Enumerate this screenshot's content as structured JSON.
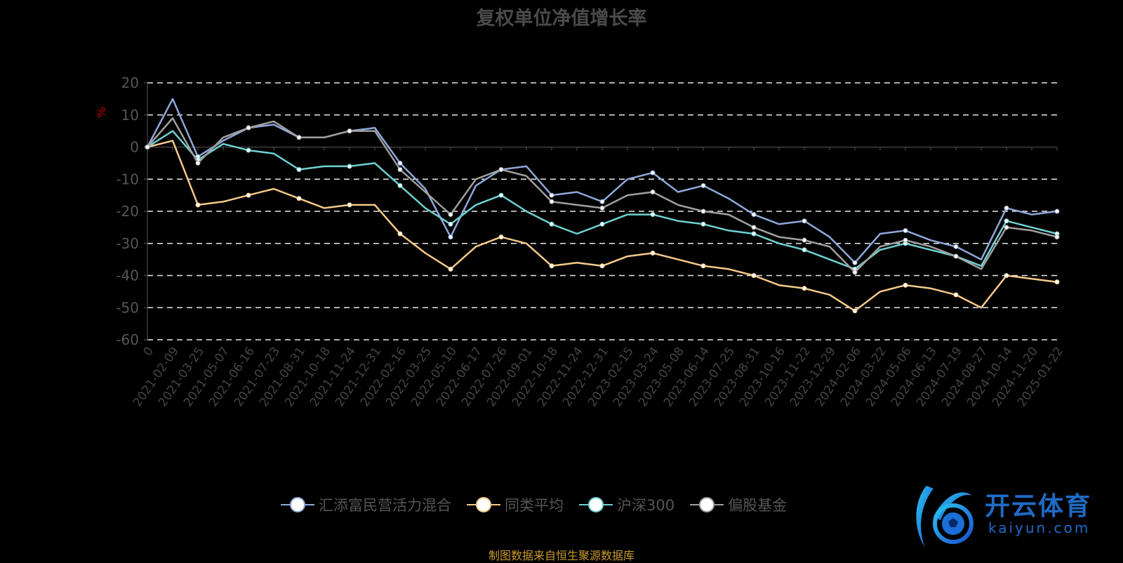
{
  "chart_data": {
    "type": "line",
    "title": "复权单位净值增长率",
    "ylabel": "%",
    "xlabel": "",
    "ylim": [
      -60,
      20
    ],
    "yticks": [
      20,
      10,
      0,
      -10,
      -20,
      -30,
      -40,
      -50,
      -60
    ],
    "grid": true,
    "legend_position": "bottom",
    "categories": [
      "0",
      "2021-02-09",
      "2021-03-25",
      "2021-05-07",
      "2021-06-16",
      "2021-07-23",
      "2021-08-31",
      "2021-10-18",
      "2021-11-24",
      "2021-12-31",
      "2022-02-16",
      "2022-03-25",
      "2022-05-10",
      "2022-06-17",
      "2022-07-26",
      "2022-09-01",
      "2022-10-18",
      "2022-11-24",
      "2022-12-31",
      "2023-02-15",
      "2023-03-24",
      "2023-05-08",
      "2023-06-14",
      "2023-07-25",
      "2023-08-31",
      "2023-10-16",
      "2023-11-22",
      "2023-12-29",
      "2024-02-06",
      "2024-03-22",
      "2024-05-06",
      "2024-06-13",
      "2024-07-19",
      "2024-08-27",
      "2024-10-14",
      "2024-11-20",
      "2025-01-22"
    ],
    "series": [
      {
        "name": "汇添富民营活力混合",
        "color": "#8fa8d8",
        "values": [
          0,
          15,
          -3,
          2,
          6,
          7,
          3,
          3,
          5,
          6,
          -5,
          -13,
          -28,
          -12,
          -7,
          -6,
          -15,
          -14,
          -17,
          -10,
          -8,
          -14,
          -12,
          -16,
          -21,
          -24,
          -23,
          -28,
          -36,
          -27,
          -26,
          -29,
          -31,
          -35,
          -19,
          -21,
          -20
        ]
      },
      {
        "name": "同类平均",
        "color": "#f5c98a",
        "values": [
          0,
          2,
          -18,
          -17,
          -15,
          -13,
          -16,
          -19,
          -18,
          -18,
          -27,
          -33,
          -38,
          -31,
          -28,
          -30,
          -37,
          -36,
          -37,
          -34,
          -33,
          -35,
          -37,
          -38,
          -40,
          -43,
          -44,
          -46,
          -51,
          -45,
          -43,
          -44,
          -46,
          -50,
          -40,
          -41,
          -42
        ]
      },
      {
        "name": "沪深300",
        "color": "#6fd0d0",
        "values": [
          0,
          5,
          -4,
          1,
          -1,
          -2,
          -7,
          -6,
          -6,
          -5,
          -12,
          -19,
          -24,
          -18,
          -15,
          -20,
          -24,
          -27,
          -24,
          -21,
          -21,
          -23,
          -24,
          -26,
          -27,
          -30,
          -32,
          -35,
          -38,
          -32,
          -30,
          -32,
          -34,
          -37,
          -23,
          -25,
          -27
        ]
      },
      {
        "name": "偏股基金",
        "color": "#a0a0a0",
        "values": [
          0,
          9,
          -5,
          3,
          6,
          8,
          3,
          3,
          5,
          5,
          -7,
          -14,
          -21,
          -10,
          -7,
          -9,
          -17,
          -18,
          -19,
          -15,
          -14,
          -18,
          -20,
          -21,
          -25,
          -28,
          -29,
          -31,
          -39,
          -31,
          -29,
          -31,
          -34,
          -38,
          -25,
          -26,
          -28
        ]
      }
    ]
  },
  "footer": {
    "source": "制图数据来自恒生聚源数据库"
  },
  "logo": {
    "cn": "开云体育",
    "en": "kaiyun.com"
  }
}
